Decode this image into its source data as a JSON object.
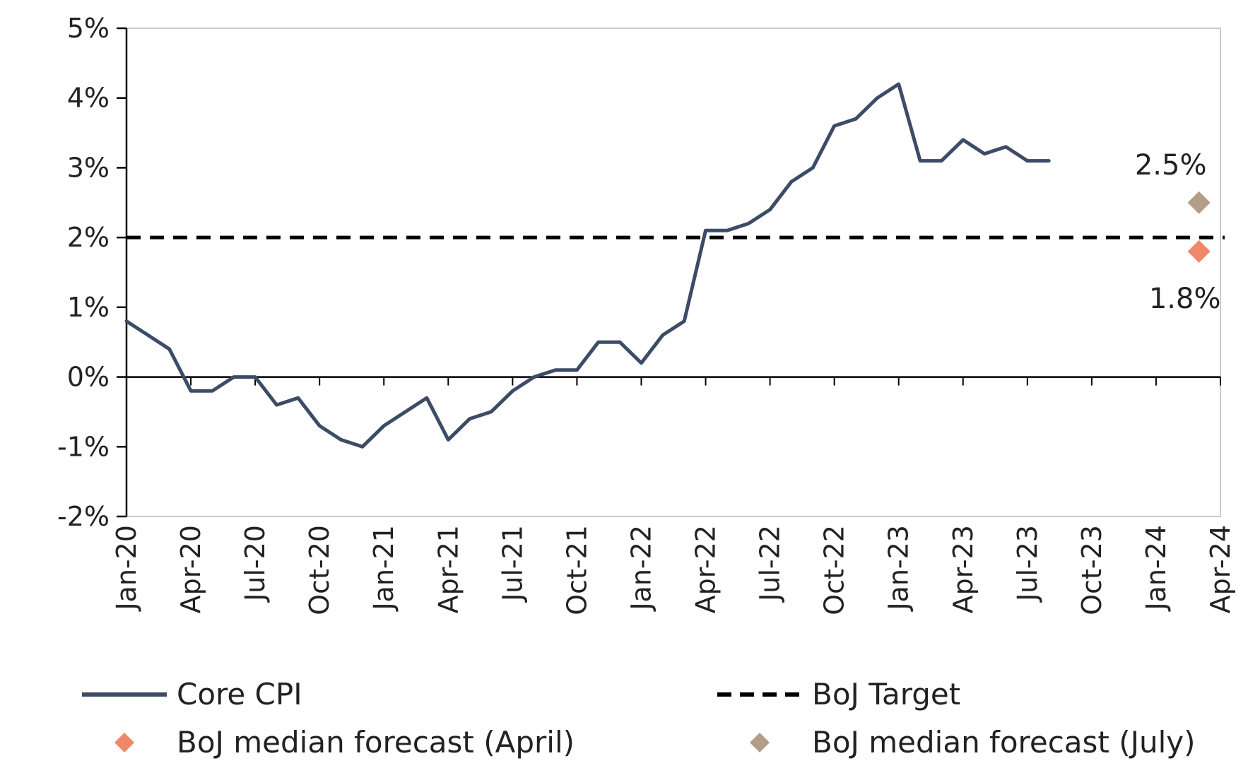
{
  "chart_data": {
    "type": "line",
    "title": "",
    "xlabel": "",
    "ylabel": "",
    "ylim": [
      -2,
      5
    ],
    "yticks": [
      "-2%",
      "-1%",
      "0%",
      "1%",
      "2%",
      "3%",
      "4%",
      "5%"
    ],
    "xticks": [
      "Jan-20",
      "Apr-20",
      "Jul-20",
      "Oct-20",
      "Jan-21",
      "Apr-21",
      "Jul-21",
      "Oct-21",
      "Jan-22",
      "Apr-22",
      "Jul-22",
      "Oct-22",
      "Jan-23",
      "Apr-23",
      "Jul-23",
      "Oct-23",
      "Jan-24",
      "Apr-24"
    ],
    "grid": false,
    "legend_position": "bottom",
    "series": [
      {
        "name": "Core CPI",
        "kind": "line",
        "color": "#3c4b68",
        "x": [
          "Jan-20",
          "Feb-20",
          "Mar-20",
          "Apr-20",
          "May-20",
          "Jun-20",
          "Jul-20",
          "Aug-20",
          "Sep-20",
          "Oct-20",
          "Nov-20",
          "Dec-20",
          "Jan-21",
          "Feb-21",
          "Mar-21",
          "Apr-21",
          "May-21",
          "Jun-21",
          "Jul-21",
          "Aug-21",
          "Sep-21",
          "Oct-21",
          "Nov-21",
          "Dec-21",
          "Jan-22",
          "Feb-22",
          "Mar-22",
          "Apr-22",
          "May-22",
          "Jun-22",
          "Jul-22",
          "Aug-22",
          "Sep-22",
          "Oct-22",
          "Nov-22",
          "Dec-22",
          "Jan-23",
          "Feb-23",
          "Mar-23",
          "Apr-23",
          "May-23",
          "Jun-23",
          "Jul-23",
          "Aug-23"
        ],
        "values": [
          0.8,
          0.6,
          0.4,
          -0.2,
          -0.2,
          0.0,
          0.0,
          -0.4,
          -0.3,
          -0.7,
          -0.9,
          -1.0,
          -0.7,
          -0.5,
          -0.3,
          -0.9,
          -0.6,
          -0.5,
          -0.2,
          0.0,
          0.1,
          0.1,
          0.5,
          0.5,
          0.2,
          0.6,
          0.8,
          2.1,
          2.1,
          2.2,
          2.4,
          2.8,
          3.0,
          3.6,
          3.7,
          4.0,
          4.2,
          3.1,
          3.1,
          3.4,
          3.2,
          3.3,
          3.1,
          3.1
        ]
      },
      {
        "name": "BoJ Target",
        "kind": "hline",
        "color": "#000000",
        "value": 2.0
      },
      {
        "name": "BoJ median forecast (April)",
        "kind": "marker",
        "color": "#f0866a",
        "x": "Mar-24",
        "value": 1.8,
        "label": "1.8%"
      },
      {
        "name": "BoJ median forecast (July)",
        "kind": "marker",
        "color": "#b39c88",
        "x": "Mar-24",
        "value": 2.5,
        "label": "2.5%"
      }
    ]
  }
}
